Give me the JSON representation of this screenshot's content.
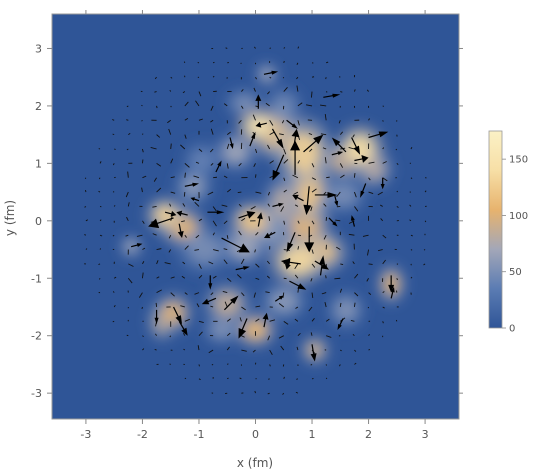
{
  "chart_data": {
    "type": "heatmap",
    "subtype": "density map with overlaid vector-field arrows",
    "xlabel": "x (fm)",
    "ylabel": "y (fm)",
    "xlim": [
      -3.6,
      3.6
    ],
    "ylim": [
      -3.45,
      3.6
    ],
    "x_ticks": [
      -3,
      -2,
      -1,
      0,
      1,
      2,
      3
    ],
    "y_ticks": [
      -3,
      -2,
      -1,
      0,
      1,
      2,
      3
    ],
    "x_tick_labels": [
      "-3",
      "-2",
      "-1",
      "0",
      "1",
      "2",
      "3"
    ],
    "y_tick_labels": [
      "-3",
      "-2",
      "-1",
      "0",
      "1",
      "2",
      "3"
    ],
    "grid": false,
    "colorbar": {
      "min": 0,
      "max": 175,
      "ticks": [
        0,
        50,
        100,
        150
      ],
      "tick_labels": [
        "0",
        "50",
        "100",
        "150"
      ],
      "colors": [
        "#2f5597",
        "#5b7cb3",
        "#a3a7b8",
        "#e7b36e",
        "#f7dfa6",
        "#fbf1c6"
      ]
    },
    "background_color": "#2f5597",
    "hotspots": [
      {
        "x": 0.05,
        "y": 1.65,
        "value": 150,
        "sx": 0.22,
        "sy": 0.18
      },
      {
        "x": 0.35,
        "y": 1.5,
        "value": 120,
        "sx": 0.25,
        "sy": 0.25
      },
      {
        "x": 0.85,
        "y": 1.2,
        "value": 130,
        "sx": 0.3,
        "sy": 0.35
      },
      {
        "x": 0.95,
        "y": 0.55,
        "value": 120,
        "sx": 0.22,
        "sy": 0.35
      },
      {
        "x": 0.9,
        "y": -0.1,
        "value": 110,
        "sx": 0.25,
        "sy": 0.35
      },
      {
        "x": 0.75,
        "y": -0.7,
        "value": 135,
        "sx": 0.3,
        "sy": 0.25
      },
      {
        "x": 1.15,
        "y": -0.55,
        "value": 120,
        "sx": 0.28,
        "sy": 0.22
      },
      {
        "x": 1.85,
        "y": 1.25,
        "value": 140,
        "sx": 0.25,
        "sy": 0.25
      },
      {
        "x": 1.55,
        "y": 1.05,
        "value": 90,
        "sx": 0.22,
        "sy": 0.2
      },
      {
        "x": 2.1,
        "y": 0.9,
        "value": 80,
        "sx": 0.2,
        "sy": 0.2
      },
      {
        "x": -1.6,
        "y": 0.1,
        "value": 130,
        "sx": 0.2,
        "sy": 0.18
      },
      {
        "x": -1.3,
        "y": -0.1,
        "value": 110,
        "sx": 0.25,
        "sy": 0.2
      },
      {
        "x": -0.05,
        "y": 0.0,
        "value": 120,
        "sx": 0.25,
        "sy": 0.2
      },
      {
        "x": -0.35,
        "y": 1.2,
        "value": 70,
        "sx": 0.22,
        "sy": 0.2
      },
      {
        "x": -0.2,
        "y": -0.45,
        "value": 70,
        "sx": 0.25,
        "sy": 0.22
      },
      {
        "x": 0.25,
        "y": -0.15,
        "value": 60,
        "sx": 0.25,
        "sy": 0.25
      },
      {
        "x": 0.5,
        "y": 0.3,
        "value": 80,
        "sx": 0.22,
        "sy": 0.3
      },
      {
        "x": 0.0,
        "y": -1.9,
        "value": 110,
        "sx": 0.22,
        "sy": 0.18
      },
      {
        "x": -0.5,
        "y": -1.45,
        "value": 85,
        "sx": 0.25,
        "sy": 0.22
      },
      {
        "x": -1.45,
        "y": -1.6,
        "value": 100,
        "sx": 0.2,
        "sy": 0.2
      },
      {
        "x": -1.65,
        "y": -1.75,
        "value": 90,
        "sx": 0.15,
        "sy": 0.2
      },
      {
        "x": 2.4,
        "y": -1.1,
        "value": 100,
        "sx": 0.15,
        "sy": 0.2
      },
      {
        "x": 1.05,
        "y": -2.25,
        "value": 90,
        "sx": 0.15,
        "sy": 0.15
      },
      {
        "x": 0.2,
        "y": 2.55,
        "value": 70,
        "sx": 0.12,
        "sy": 0.12
      },
      {
        "x": -0.2,
        "y": 2.05,
        "value": 50,
        "sx": 0.2,
        "sy": 0.15
      },
      {
        "x": -1.1,
        "y": 0.6,
        "value": 60,
        "sx": 0.2,
        "sy": 0.2
      },
      {
        "x": -2.2,
        "y": -0.45,
        "value": 70,
        "sx": 0.12,
        "sy": 0.12
      },
      {
        "x": 1.55,
        "y": 0.45,
        "value": 50,
        "sx": 0.25,
        "sy": 0.2
      },
      {
        "x": 0.5,
        "y": -1.4,
        "value": 60,
        "sx": 0.25,
        "sy": 0.2
      },
      {
        "x": 1.6,
        "y": -1.55,
        "value": 55,
        "sx": 0.2,
        "sy": 0.2
      },
      {
        "x": -0.9,
        "y": -0.5,
        "value": 50,
        "sx": 0.3,
        "sy": 0.25
      },
      {
        "x": -0.6,
        "y": -1.9,
        "value": 55,
        "sx": 0.2,
        "sy": 0.15
      },
      {
        "x": 0.5,
        "y": 2.0,
        "value": 45,
        "sx": 0.2,
        "sy": 0.2
      },
      {
        "x": -0.95,
        "y": 1.05,
        "value": 40,
        "sx": 0.2,
        "sy": 0.2
      }
    ],
    "vectors": [
      {
        "x": 0.05,
        "y": 1.95,
        "dx": 0.0,
        "dy": 0.25,
        "w": 3
      },
      {
        "x": 0.2,
        "y": 1.7,
        "dx": -0.2,
        "dy": -0.05,
        "w": 3
      },
      {
        "x": 0.3,
        "y": 1.6,
        "dx": 0.2,
        "dy": -0.35,
        "w": 3
      },
      {
        "x": 0.5,
        "y": 1.15,
        "dx": -0.2,
        "dy": -0.45,
        "w": 4
      },
      {
        "x": 0.68,
        "y": 1.3,
        "dx": 0.05,
        "dy": 0.3,
        "w": 4
      },
      {
        "x": 0.7,
        "y": 0.8,
        "dx": 0.0,
        "dy": 0.6,
        "w": 5
      },
      {
        "x": 0.85,
        "y": 1.2,
        "dx": 0.35,
        "dy": 0.3,
        "w": 4
      },
      {
        "x": 0.95,
        "y": 0.6,
        "dx": -0.05,
        "dy": -0.5,
        "w": 4
      },
      {
        "x": 0.85,
        "y": 0.35,
        "dx": -0.2,
        "dy": 0.1,
        "w": 3
      },
      {
        "x": 1.05,
        "y": 0.45,
        "dx": 0.4,
        "dy": 0.0,
        "w": 3
      },
      {
        "x": 0.95,
        "y": -0.1,
        "dx": 0.0,
        "dy": -0.45,
        "w": 5
      },
      {
        "x": 0.7,
        "y": -0.2,
        "dx": -0.15,
        "dy": -0.35,
        "w": 3
      },
      {
        "x": 0.8,
        "y": -0.75,
        "dx": -0.35,
        "dy": 0.05,
        "w": 4
      },
      {
        "x": 1.05,
        "y": -0.7,
        "dx": 0.25,
        "dy": -0.15,
        "w": 3
      },
      {
        "x": 0.6,
        "y": -1.05,
        "dx": 0.3,
        "dy": -0.15,
        "w": 3
      },
      {
        "x": 0.6,
        "y": -0.65,
        "dx": -0.05,
        "dy": -0.2,
        "w": 3
      },
      {
        "x": 1.15,
        "y": -0.95,
        "dx": 0.05,
        "dy": 0.35,
        "w": 3
      },
      {
        "x": 1.7,
        "y": 1.45,
        "dx": 0.15,
        "dy": -0.3,
        "w": 3
      },
      {
        "x": 1.75,
        "y": 1.05,
        "dx": 0.25,
        "dy": 0.05,
        "w": 4
      },
      {
        "x": 1.6,
        "y": 1.2,
        "dx": -0.25,
        "dy": 0.25,
        "w": 3
      },
      {
        "x": 2.0,
        "y": 1.45,
        "dx": 0.35,
        "dy": 0.1,
        "w": 3
      },
      {
        "x": 2.25,
        "y": 0.75,
        "dx": 0.0,
        "dy": -0.2,
        "w": 2
      },
      {
        "x": 1.95,
        "y": 0.65,
        "dx": -0.1,
        "dy": -0.25,
        "w": 2
      },
      {
        "x": 1.4,
        "y": 0.45,
        "dx": 0.05,
        "dy": -0.2,
        "w": 2
      },
      {
        "x": 1.35,
        "y": 1.15,
        "dx": 0.2,
        "dy": 0.05,
        "w": 2
      },
      {
        "x": -1.45,
        "y": 0.05,
        "dx": -0.45,
        "dy": -0.15,
        "w": 5
      },
      {
        "x": -1.35,
        "y": -0.05,
        "dx": 0.05,
        "dy": -0.25,
        "w": 3
      },
      {
        "x": -1.2,
        "y": 0.1,
        "dx": -0.2,
        "dy": 0.05,
        "w": 3
      },
      {
        "x": -1.6,
        "y": 0.15,
        "dx": 0.2,
        "dy": -0.05,
        "w": 3
      },
      {
        "x": -0.6,
        "y": -0.3,
        "dx": 0.5,
        "dy": -0.25,
        "w": 5
      },
      {
        "x": -0.3,
        "y": 0.05,
        "dx": 0.3,
        "dy": 0.1,
        "w": 4
      },
      {
        "x": 0.05,
        "y": -0.1,
        "dx": 0.05,
        "dy": 0.25,
        "w": 3
      },
      {
        "x": 0.35,
        "y": -0.2,
        "dx": -0.2,
        "dy": -0.1,
        "w": 3
      },
      {
        "x": 0.3,
        "y": 0.25,
        "dx": 0.2,
        "dy": 0.05,
        "w": 2
      },
      {
        "x": -0.45,
        "y": 1.45,
        "dx": 0.05,
        "dy": -0.2,
        "w": 2
      },
      {
        "x": -0.1,
        "y": 1.3,
        "dx": 0.1,
        "dy": 0.25,
        "w": 2
      },
      {
        "x": -1.25,
        "y": 0.6,
        "dx": 0.25,
        "dy": 0.05,
        "w": 2
      },
      {
        "x": -1.0,
        "y": 0.35,
        "dx": -0.15,
        "dy": 0.05,
        "w": 2
      },
      {
        "x": -0.85,
        "y": 0.15,
        "dx": 0.3,
        "dy": 0.0,
        "w": 2
      },
      {
        "x": -1.45,
        "y": -1.5,
        "dx": 0.15,
        "dy": -0.3,
        "w": 3
      },
      {
        "x": -1.35,
        "y": -1.75,
        "dx": 0.15,
        "dy": -0.25,
        "w": 3
      },
      {
        "x": -1.75,
        "y": -1.55,
        "dx": 0.0,
        "dy": -0.25,
        "w": 2
      },
      {
        "x": -0.7,
        "y": -1.35,
        "dx": -0.25,
        "dy": -0.1,
        "w": 3
      },
      {
        "x": -0.55,
        "y": -1.55,
        "dx": 0.25,
        "dy": 0.25,
        "w": 3
      },
      {
        "x": -0.15,
        "y": -1.7,
        "dx": -0.15,
        "dy": -0.35,
        "w": 4
      },
      {
        "x": 0.15,
        "y": -1.85,
        "dx": 0.05,
        "dy": 0.25,
        "w": 3
      },
      {
        "x": -0.35,
        "y": -0.85,
        "dx": 0.25,
        "dy": 0.05,
        "w": 2
      },
      {
        "x": -0.8,
        "y": -0.95,
        "dx": 0.0,
        "dy": -0.25,
        "w": 2
      },
      {
        "x": 1.0,
        "y": -2.15,
        "dx": 0.05,
        "dy": -0.3,
        "w": 3
      },
      {
        "x": 2.4,
        "y": -0.95,
        "dx": 0.0,
        "dy": -0.3,
        "w": 3
      },
      {
        "x": 2.4,
        "y": -1.35,
        "dx": 0.05,
        "dy": 0.2,
        "w": 2
      },
      {
        "x": 0.15,
        "y": 2.55,
        "dx": 0.25,
        "dy": 0.05,
        "w": 2
      },
      {
        "x": 1.2,
        "y": 2.15,
        "dx": 0.3,
        "dy": 0.05,
        "w": 2
      },
      {
        "x": 0.55,
        "y": 1.75,
        "dx": 0.2,
        "dy": -0.15,
        "w": 2
      },
      {
        "x": 1.55,
        "y": -1.7,
        "dx": -0.1,
        "dy": -0.2,
        "w": 2
      },
      {
        "x": 0.35,
        "y": -1.4,
        "dx": 0.15,
        "dy": 0.1,
        "w": 2
      },
      {
        "x": 1.3,
        "y": 0.05,
        "dx": 0.15,
        "dy": -0.15,
        "w": 2
      },
      {
        "x": 1.75,
        "y": -0.1,
        "dx": -0.05,
        "dy": 0.2,
        "w": 2
      },
      {
        "x": -2.2,
        "y": -0.45,
        "dx": 0.2,
        "dy": 0.05,
        "w": 2
      },
      {
        "x": -0.7,
        "y": 0.85,
        "dx": 0.1,
        "dy": 0.2,
        "w": 2
      }
    ]
  }
}
